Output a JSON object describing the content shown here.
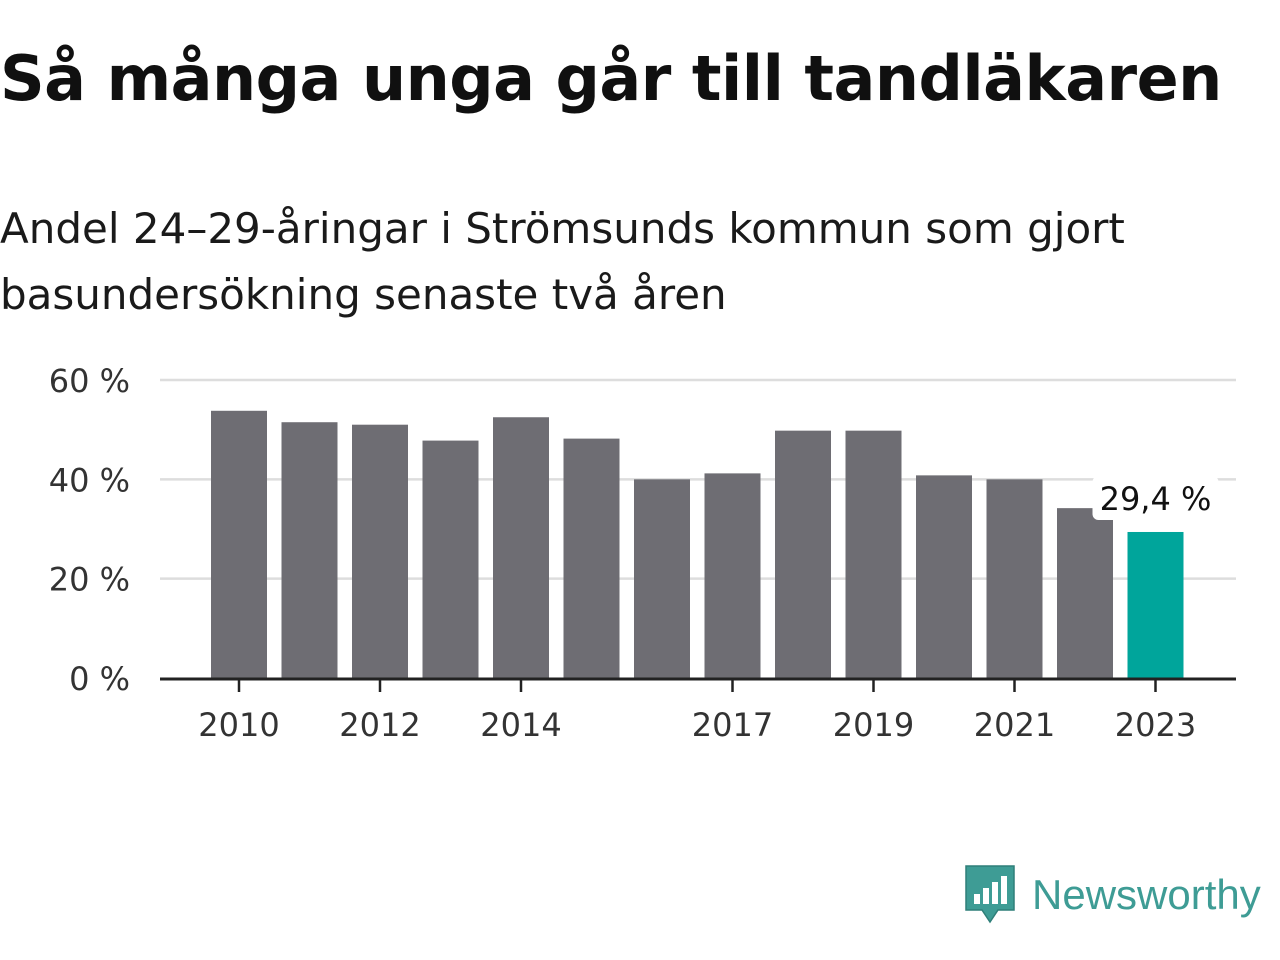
{
  "header": {
    "title": "Så många unga går till tandläkaren",
    "subtitle": "Andel 24–29-åringar i Strömsunds kommun som gjort basundersökning senaste två åren"
  },
  "brand": {
    "name": "Newsworthy",
    "icon": "newsworthy-logo-icon",
    "color": "#3e9c95"
  },
  "chart_data": {
    "type": "bar",
    "categories": [
      "2010",
      "2011",
      "2012",
      "2013",
      "2014",
      "2015",
      "2016",
      "2017",
      "2018",
      "2019",
      "2020",
      "2021",
      "2022",
      "2023"
    ],
    "values": [
      53.8,
      51.5,
      51.0,
      47.8,
      52.5,
      48.2,
      40.0,
      41.2,
      49.8,
      49.8,
      40.8,
      40.0,
      34.2,
      29.4
    ],
    "x_tick_labels": [
      "2010",
      "",
      "2012",
      "",
      "2014",
      "",
      "",
      "2017",
      "",
      "2019",
      "",
      "2021",
      "",
      "2023"
    ],
    "y_ticks": [
      0,
      20,
      40,
      60
    ],
    "y_tick_labels": [
      "0 %",
      "20 %",
      "40 %",
      "60 %"
    ],
    "ylim": [
      0,
      60
    ],
    "grid": true,
    "annotation": {
      "category": "2023",
      "label": "29,4 %"
    },
    "bar_color": "#6e6d73",
    "highlight_color": "#00a59b"
  }
}
